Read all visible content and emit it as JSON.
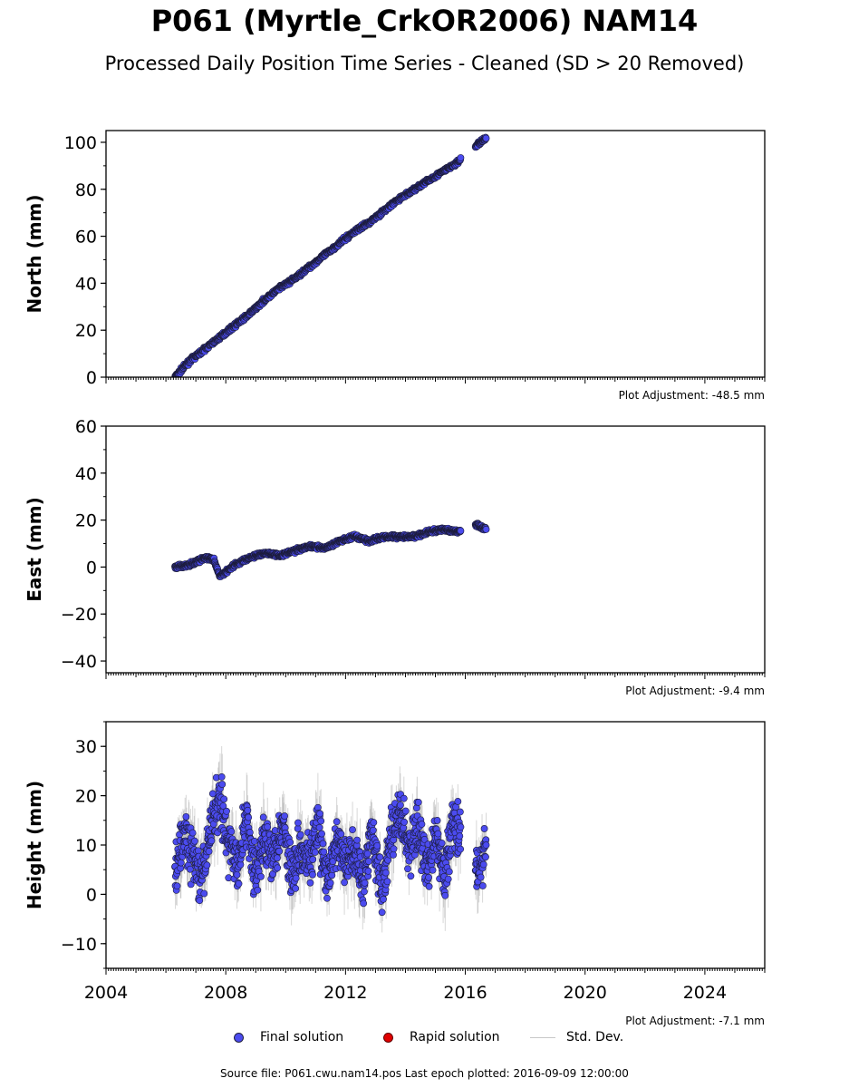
{
  "title": "P061 (Myrtle_CrkOR2006) NAM14",
  "subtitle": "Processed Daily Position Time Series - Cleaned (SD > 20 Removed)",
  "legend": {
    "final": "Final solution",
    "rapid": "Rapid solution",
    "std": "Std. Dev."
  },
  "source": "Source file: P061.cwu.nam14.pos  Last epoch plotted: 2016-09-09 12:00:00",
  "colors": {
    "final": "#4b4bef",
    "final_edge": "#1c1c3a",
    "rapid": "#e00000",
    "std": "#8c8c8c"
  },
  "chart_data": [
    {
      "type": "scatter",
      "ylabel": "North (mm)",
      "xlim": [
        2004,
        2026
      ],
      "ylim": [
        0,
        105
      ],
      "yticks": [
        0,
        20,
        40,
        60,
        80,
        100
      ],
      "adjustment": "Plot Adjustment: -48.5 mm",
      "series": [
        {
          "name": "Final solution",
          "x": [
            2006.3,
            2006.8,
            2007.3,
            2007.8,
            2008.3,
            2008.8,
            2009.3,
            2009.8,
            2010.3,
            2010.8,
            2011.3,
            2011.8,
            2012.3,
            2012.8,
            2013.3,
            2013.8,
            2014.3,
            2014.8,
            2015.3,
            2015.7,
            2016.4,
            2016.7
          ],
          "y": [
            0,
            7,
            12,
            17,
            22,
            27,
            33,
            38,
            42,
            47,
            52,
            57,
            62,
            66,
            71,
            76,
            80,
            84,
            88,
            91,
            99,
            102
          ]
        }
      ]
    },
    {
      "type": "scatter",
      "ylabel": "East (mm)",
      "xlim": [
        2004,
        2026
      ],
      "ylim": [
        -45,
        60
      ],
      "yticks": [
        -40,
        -20,
        0,
        20,
        40,
        60
      ],
      "adjustment": "Plot Adjustment: -9.4 mm",
      "series": [
        {
          "name": "Final solution",
          "x": [
            2006.3,
            2006.8,
            2007.3,
            2007.6,
            2007.8,
            2008.3,
            2008.8,
            2009.3,
            2009.8,
            2010.3,
            2010.8,
            2011.3,
            2011.8,
            2012.3,
            2012.8,
            2013.3,
            2013.8,
            2014.3,
            2014.8,
            2015.3,
            2015.7,
            2016.4,
            2016.7
          ],
          "y": [
            0,
            1,
            4,
            3,
            -4,
            1,
            4,
            6,
            5,
            7,
            9,
            8,
            11,
            13,
            11,
            13,
            13,
            13,
            15,
            16,
            15,
            18,
            16
          ]
        }
      ]
    },
    {
      "type": "scatter",
      "ylabel": "Height (mm)",
      "xlim": [
        2004,
        2026
      ],
      "ylim": [
        -15,
        35
      ],
      "yticks": [
        -10,
        0,
        10,
        20,
        30
      ],
      "xticks": [
        2004,
        2008,
        2012,
        2016,
        2020,
        2024
      ],
      "adjustment": "Plot Adjustment: -7.1 mm",
      "series": [
        {
          "name": "Final solution",
          "x": [
            2006.3,
            2006.6,
            2006.9,
            2007.2,
            2007.5,
            2007.8,
            2008.1,
            2008.4,
            2008.7,
            2009.0,
            2009.3,
            2009.6,
            2009.9,
            2010.2,
            2010.5,
            2010.8,
            2011.1,
            2011.4,
            2011.7,
            2012.0,
            2012.3,
            2012.6,
            2012.9,
            2013.2,
            2013.5,
            2013.8,
            2014.1,
            2014.4,
            2014.7,
            2015.0,
            2015.3,
            2015.6,
            2016.4,
            2016.7
          ],
          "y": [
            5,
            12,
            8,
            2,
            14,
            20,
            10,
            6,
            16,
            3,
            12,
            8,
            15,
            4,
            10,
            7,
            13,
            2,
            11,
            6,
            9,
            3,
            14,
            0,
            11,
            17,
            9,
            14,
            5,
            12,
            3,
            16,
            4,
            10
          ]
        }
      ]
    }
  ]
}
